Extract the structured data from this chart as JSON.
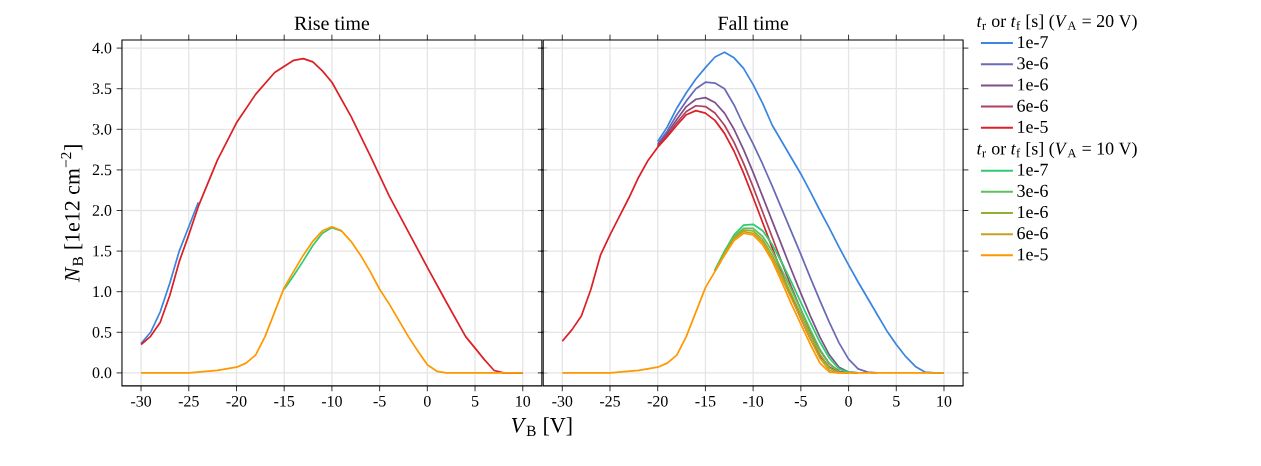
{
  "chart_data": [
    {
      "type": "line",
      "title": "Rise time",
      "xlabel": "*V*$_{B}$ [V]",
      "ylabel": "*N*$_{B}$ [1e12 cm$^{−2}$]",
      "xlim": [
        -32,
        12
      ],
      "ylim": [
        -0.16,
        4.1
      ],
      "xticks": [
        -30,
        -25,
        -20,
        -15,
        -10,
        -5,
        0,
        5,
        10
      ],
      "yticks": [
        {
          "value": 0,
          "label": "0.0"
        },
        0.5,
        {
          "value": 1,
          "label": "1.0"
        },
        1.5,
        {
          "value": 2,
          "label": "2.0"
        },
        2.5,
        {
          "value": 3,
          "label": "3.0"
        },
        3.5,
        {
          "value": 4,
          "label": "4.0"
        }
      ],
      "grid": true,
      "series": [
        {
          "color": "#3a86e0",
          "x": [
            -30,
            -29,
            -28,
            -27,
            -26,
            -25,
            -24
          ],
          "values": [
            0.36,
            0.5,
            0.75,
            1.1,
            1.5,
            1.8,
            2.1
          ]
        },
        {
          "color": "#dc2027",
          "x": [
            -30,
            -29,
            -28,
            -27,
            -26,
            -25,
            -24,
            -22,
            -20,
            -18,
            -16,
            -14,
            -13,
            -12,
            -11,
            -10,
            -8,
            -6,
            -4,
            -2,
            0,
            2,
            4,
            6,
            7,
            8,
            10
          ],
          "values": [
            0.35,
            0.45,
            0.62,
            0.95,
            1.37,
            1.7,
            2.05,
            2.62,
            3.08,
            3.43,
            3.7,
            3.85,
            3.87,
            3.83,
            3.72,
            3.58,
            3.16,
            2.68,
            2.18,
            1.74,
            1.3,
            0.87,
            0.45,
            0.16,
            0.03,
            0,
            0
          ]
        },
        {
          "color": "#2ecc71",
          "x": [
            -15,
            -14,
            -13,
            -12,
            -11,
            -10,
            -9
          ],
          "values": [
            1.03,
            1.2,
            1.38,
            1.57,
            1.72,
            1.79,
            1.75
          ]
        },
        {
          "color": "#ff9800",
          "x": [
            -30,
            -25,
            -22,
            -20,
            -19,
            -18,
            -17,
            -16,
            -15,
            -14,
            -13,
            -12,
            -11,
            -10,
            -9,
            -8,
            -7,
            -6,
            -5,
            -4,
            -3,
            -2,
            -1,
            0,
            1,
            2,
            10
          ],
          "values": [
            0,
            0,
            0.03,
            0.07,
            0.12,
            0.22,
            0.45,
            0.75,
            1.05,
            1.25,
            1.45,
            1.62,
            1.75,
            1.8,
            1.75,
            1.62,
            1.45,
            1.25,
            1.03,
            0.85,
            0.65,
            0.45,
            0.27,
            0.1,
            0.02,
            0,
            0
          ]
        }
      ]
    },
    {
      "type": "line",
      "title": "Fall time",
      "legend": "right",
      "legend_title": "*t*$_{r}$ or *t*$_{f}$ [s] (*V*$_{A}$ = 20 V)",
      "annotations": [
        "*t*$_{r}$ or *t*$_{f}$ [s] (*V*$_{A}$ = 10 V)"
      ],
      "tick_labels": "x",
      "xlim": [
        -32,
        12
      ],
      "ylim": [
        -0.16,
        4.1
      ],
      "xticks": [
        -30,
        -25,
        -20,
        -15,
        -10,
        -5,
        0,
        5,
        10
      ],
      "yticks": [
        0,
        0.5,
        1,
        1.5,
        2,
        2.5,
        3,
        3.5,
        4
      ],
      "grid": true,
      "series": [
        {
          "name": "1e-7",
          "color": "#3a86e0",
          "x": [
            -20,
            -19,
            -18,
            -17,
            -16,
            -15,
            -14,
            -13,
            -12,
            -11,
            -10,
            -9,
            -8,
            -7,
            -6,
            -5,
            -4,
            -3,
            -2,
            -1,
            0,
            1,
            2,
            3,
            4,
            5,
            6,
            7,
            8,
            9,
            10
          ],
          "values": [
            2.85,
            3.03,
            3.26,
            3.45,
            3.62,
            3.76,
            3.89,
            3.95,
            3.88,
            3.75,
            3.55,
            3.32,
            3.05,
            2.85,
            2.65,
            2.45,
            2.23,
            2.0,
            1.78,
            1.55,
            1.33,
            1.12,
            0.92,
            0.72,
            0.52,
            0.35,
            0.2,
            0.08,
            0.01,
            0,
            0
          ]
        },
        {
          "name": "3e-6",
          "color": "#6a6ab8",
          "x": [
            -20,
            -19,
            -18,
            -17,
            -16,
            -15,
            -14,
            -13,
            -12,
            -11,
            -10,
            -9,
            -8,
            -7,
            -6,
            -5,
            -4,
            -3,
            -2,
            -1,
            0,
            1,
            2,
            3
          ],
          "values": [
            2.82,
            2.98,
            3.18,
            3.35,
            3.5,
            3.58,
            3.57,
            3.5,
            3.3,
            3.05,
            2.82,
            2.57,
            2.3,
            2.02,
            1.74,
            1.46,
            1.17,
            0.89,
            0.62,
            0.37,
            0.17,
            0.05,
            0.01,
            0
          ]
        },
        {
          "name": "1e-6",
          "color": "#7e4f8c",
          "x": [
            -20,
            -19,
            -18,
            -17,
            -16,
            -15,
            -14,
            -13,
            -12,
            -11,
            -10,
            -9,
            -8,
            -7,
            -6,
            -5,
            -4,
            -3,
            -2,
            -1,
            0,
            1
          ],
          "values": [
            2.8,
            2.95,
            3.12,
            3.28,
            3.37,
            3.39,
            3.33,
            3.2,
            3.0,
            2.75,
            2.47,
            2.17,
            1.87,
            1.57,
            1.27,
            0.98,
            0.7,
            0.44,
            0.22,
            0.07,
            0.01,
            0
          ]
        },
        {
          "name": "6e-6",
          "color": "#b0405e",
          "x": [
            -20,
            -19,
            -18,
            -17,
            -16,
            -15,
            -14,
            -13,
            -12,
            -11,
            -10,
            -9,
            -8,
            -7,
            -6,
            -5,
            -4,
            -3,
            -2,
            -1,
            0
          ],
          "values": [
            2.79,
            2.93,
            3.08,
            3.22,
            3.29,
            3.28,
            3.2,
            3.05,
            2.84,
            2.58,
            2.29,
            1.98,
            1.67,
            1.36,
            1.06,
            0.78,
            0.51,
            0.28,
            0.11,
            0.02,
            0
          ]
        },
        {
          "name": "1e-5",
          "color": "#dc2027",
          "x": [
            -30,
            -29,
            -28,
            -27,
            -26,
            -25,
            -24,
            -23,
            -22,
            -21,
            -20,
            -19,
            -18,
            -17,
            -16,
            -15,
            -14,
            -13,
            -12,
            -11,
            -10,
            -9,
            -8,
            -7,
            -6,
            -5,
            -4,
            -3,
            -2,
            -1,
            0
          ],
          "values": [
            0.39,
            0.53,
            0.7,
            1.03,
            1.45,
            1.7,
            1.93,
            2.16,
            2.41,
            2.62,
            2.78,
            2.91,
            3.05,
            3.18,
            3.23,
            3.2,
            3.11,
            2.95,
            2.73,
            2.46,
            2.16,
            1.85,
            1.54,
            1.23,
            0.94,
            0.67,
            0.42,
            0.21,
            0.07,
            0.01,
            0
          ]
        },
        {
          "name": "1e-7",
          "color": "#2ecc71",
          "x": [
            -14,
            -13,
            -12,
            -11,
            -10,
            -9,
            -8,
            -7,
            -6,
            -5,
            -4,
            -3,
            -2,
            -1,
            0,
            1
          ],
          "values": [
            1.27,
            1.5,
            1.7,
            1.82,
            1.83,
            1.75,
            1.58,
            1.36,
            1.12,
            0.87,
            0.62,
            0.38,
            0.18,
            0.05,
            0.01,
            0
          ]
        },
        {
          "name": "3e-6",
          "color": "#5cc05c",
          "x": [
            -14,
            -13,
            -12,
            -11,
            -10,
            -9,
            -8,
            -7,
            -6,
            -5,
            -4,
            -3,
            -2,
            -1,
            0
          ],
          "values": [
            1.26,
            1.48,
            1.68,
            1.78,
            1.78,
            1.68,
            1.5,
            1.27,
            1.03,
            0.78,
            0.53,
            0.29,
            0.11,
            0.01,
            0
          ]
        },
        {
          "name": "1e-6",
          "color": "#90b030",
          "x": [
            -14,
            -13,
            -12,
            -11,
            -10,
            -9,
            -8,
            -7,
            -6,
            -5,
            -4,
            -3,
            -2,
            -1
          ],
          "values": [
            1.26,
            1.47,
            1.66,
            1.76,
            1.75,
            1.64,
            1.45,
            1.21,
            0.97,
            0.72,
            0.47,
            0.23,
            0.06,
            0
          ]
        },
        {
          "name": "6e-6",
          "color": "#c8a020",
          "x": [
            -14,
            -13,
            -12,
            -11,
            -10,
            -9,
            -8,
            -7,
            -6,
            -5,
            -4,
            -3,
            -2,
            -1
          ],
          "values": [
            1.25,
            1.46,
            1.65,
            1.74,
            1.72,
            1.61,
            1.41,
            1.17,
            0.92,
            0.67,
            0.42,
            0.18,
            0.03,
            0
          ]
        },
        {
          "name": "1e-5",
          "color": "#ff9800",
          "x": [
            -30,
            -25,
            -22,
            -20,
            -19,
            -18,
            -17,
            -16,
            -15,
            -14,
            -13,
            -12,
            -11,
            -10,
            -9,
            -8,
            -7,
            -6,
            -5,
            -4,
            -3,
            -2,
            -1,
            10
          ],
          "values": [
            0,
            0,
            0.03,
            0.07,
            0.12,
            0.22,
            0.45,
            0.75,
            1.05,
            1.25,
            1.45,
            1.63,
            1.72,
            1.7,
            1.58,
            1.38,
            1.12,
            0.85,
            0.6,
            0.35,
            0.12,
            0.01,
            0,
            0
          ]
        }
      ]
    }
  ]
}
